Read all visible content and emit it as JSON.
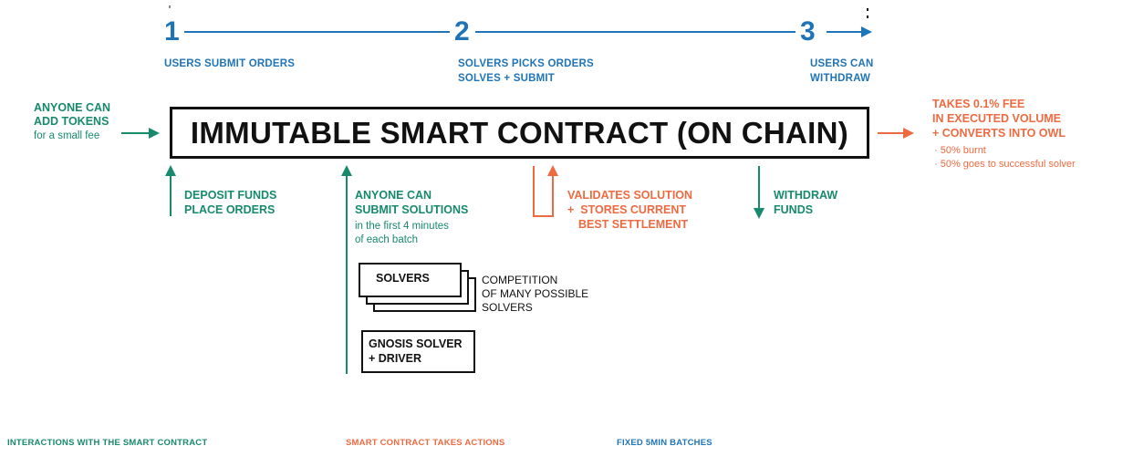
{
  "steps": [
    {
      "number": "1",
      "label": "USERS SUBMIT ORDERS"
    },
    {
      "number": "2",
      "label_line1": "SOLVERS PICKS ORDERS",
      "label_line2": "SOLVES + SUBMIT"
    },
    {
      "number": "3",
      "label_line1": "USERS CAN",
      "label_line2": "WITHDRAW"
    }
  ],
  "contract": {
    "title": "IMMUTABLE SMART CONTRACT (ON CHAIN)"
  },
  "add_tokens": {
    "line1": "ANYONE CAN",
    "line2": "ADD TOKENS",
    "line3": "for a small fee"
  },
  "fee": {
    "line1": "TAKES 0.1% FEE",
    "line2": "IN EXECUTED VOLUME",
    "line3": "+ CONVERTS INTO OWL",
    "bullet1": "· 50% burnt",
    "bullet2": "· 50% goes to successful solver"
  },
  "deposit": {
    "line1": "DEPOSIT FUNDS",
    "line2": "PLACE ORDERS"
  },
  "submit_solutions": {
    "line1": "ANYONE CAN",
    "line2": "SUBMIT SOLUTIONS",
    "line3": "in the first 4 minutes",
    "line4": "of each batch"
  },
  "validates": {
    "line1": "VALIDATES SOLUTION",
    "line2": "+  STORES CURRENT",
    "line3": "BEST SETTLEMENT"
  },
  "withdraw": {
    "line1": "WITHDRAW",
    "line2": "FUNDS"
  },
  "solvers": {
    "card_label": "SOLVERS",
    "competition_line1": "COMPETITION",
    "competition_line2": "OF MANY POSSIBLE",
    "competition_line3": "SOLVERS"
  },
  "gnosis": {
    "line1": "GNOSIS SOLVER",
    "line2": "+ DRIVER"
  },
  "legend": {
    "interactions": "INTERACTIONS WITH THE SMART CONTRACT",
    "actions": "SMART CONTRACT TAKES ACTIONS",
    "batches": "FIXED 5MIN BATCHES"
  },
  "colors": {
    "blue": "#1f74b8",
    "green": "#178a6e",
    "orange": "#ee6a41",
    "black": "#111111"
  }
}
